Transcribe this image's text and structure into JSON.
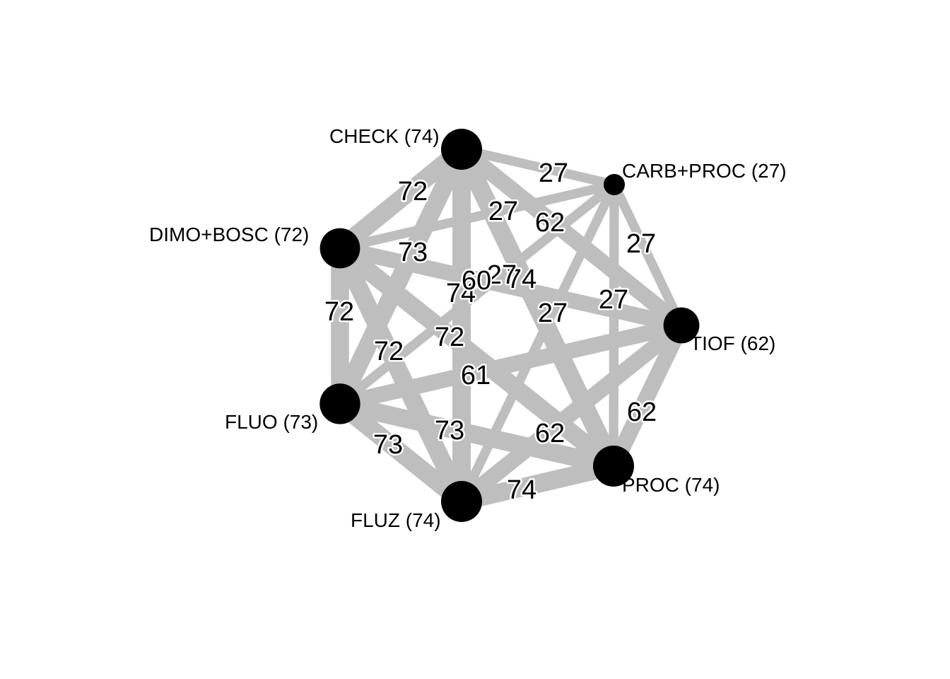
{
  "colors": {
    "edge": "#bebebe",
    "node": "#000000",
    "background": "#ffffff"
  },
  "network": {
    "nodes": [
      {
        "id": "CHECK",
        "label": "CHECK (74)",
        "size": 74
      },
      {
        "id": "CARB+PROC",
        "label": "CARB+PROC (27)",
        "size": 27
      },
      {
        "id": "TIOF",
        "label": "TIOF (62)",
        "size": 62
      },
      {
        "id": "PROC",
        "label": "PROC (74)",
        "size": 74
      },
      {
        "id": "FLUZ",
        "label": "FLUZ (74)",
        "size": 74
      },
      {
        "id": "FLUO",
        "label": "FLUO (73)",
        "size": 73
      },
      {
        "id": "DIMO+BOSC",
        "label": "DIMO+BOSC (72)",
        "size": 72
      }
    ],
    "edges": [
      {
        "from": "CHECK",
        "to": "CARB+PROC",
        "label": "27",
        "weight": 27
      },
      {
        "from": "CHECK",
        "to": "DIMO+BOSC",
        "label": "72",
        "weight": 72
      },
      {
        "from": "CHECK",
        "to": "TIOF",
        "label": "62",
        "weight": 62
      },
      {
        "from": "CHECK",
        "to": "FLUO",
        "label": "73",
        "weight": 73
      },
      {
        "from": "CHECK",
        "to": "FLUZ",
        "label": "74",
        "weight": 74
      },
      {
        "from": "CHECK",
        "to": "PROC",
        "label": "74",
        "weight": 74
      },
      {
        "from": "CARB+PROC",
        "to": "TIOF",
        "label": "27",
        "weight": 27
      },
      {
        "from": "CARB+PROC",
        "to": "DIMO+BOSC",
        "label": "27",
        "weight": 27
      },
      {
        "from": "CARB+PROC",
        "to": "PROC",
        "label": "27",
        "weight": 27
      },
      {
        "from": "CARB+PROC",
        "to": "FLUO",
        "label": "27",
        "weight": 27
      },
      {
        "from": "CARB+PROC",
        "to": "FLUZ",
        "label": "27",
        "weight": 27
      },
      {
        "from": "DIMO+BOSC",
        "to": "TIOF",
        "label": "60",
        "weight": 60
      },
      {
        "from": "DIMO+BOSC",
        "to": "FLUO",
        "label": "72",
        "weight": 72
      },
      {
        "from": "DIMO+BOSC",
        "to": "FLUZ",
        "label": "72",
        "weight": 72
      },
      {
        "from": "DIMO+BOSC",
        "to": "PROC",
        "label": "72",
        "weight": 72
      },
      {
        "from": "TIOF",
        "to": "PROC",
        "label": "62",
        "weight": 62
      },
      {
        "from": "TIOF",
        "to": "FLUZ",
        "label": "62",
        "weight": 62
      },
      {
        "from": "TIOF",
        "to": "FLUO",
        "label": "61",
        "weight": 61
      },
      {
        "from": "FLUO",
        "to": "FLUZ",
        "label": "73",
        "weight": 73
      },
      {
        "from": "FLUO",
        "to": "PROC",
        "label": "73",
        "weight": 73
      },
      {
        "from": "FLUZ",
        "to": "PROC",
        "label": "74",
        "weight": 74
      }
    ]
  }
}
